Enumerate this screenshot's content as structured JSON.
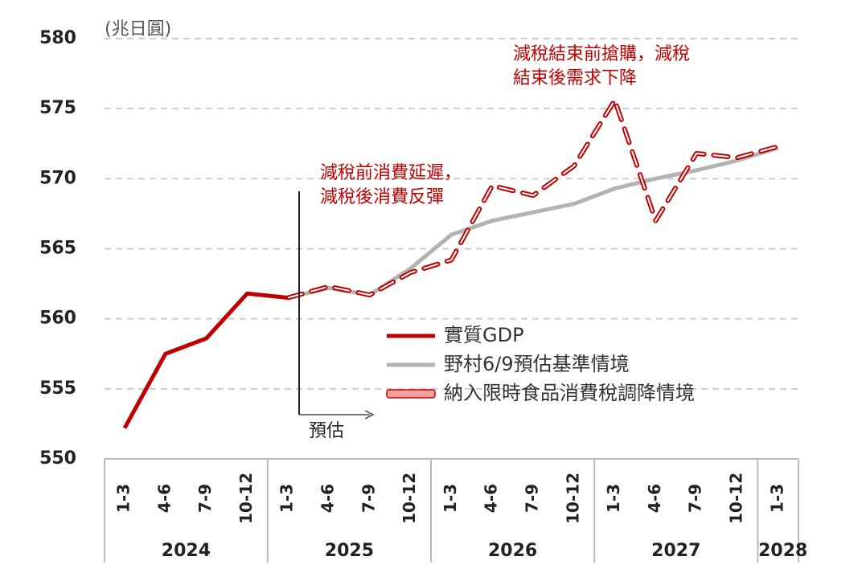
{
  "chart_data": {
    "type": "line",
    "unit_label": "(兆日圓)",
    "categories": [
      "1-3",
      "4-6",
      "7-9",
      "10-12",
      "1-3",
      "4-6",
      "7-9",
      "10-12",
      "1-3",
      "4-6",
      "7-9",
      "10-12",
      "1-3",
      "4-6",
      "7-9",
      "10-12",
      "1-3"
    ],
    "years": [
      "2024",
      "2025",
      "2026",
      "2027",
      "2028"
    ],
    "ylim": [
      550,
      580
    ],
    "yticks": [
      550,
      555,
      560,
      565,
      570,
      575,
      580
    ],
    "grid": true,
    "series": [
      {
        "name": "實質GDP",
        "color": "#c00000",
        "style": "solid",
        "values": [
          552.2,
          557.5,
          558.6,
          561.8,
          561.5,
          null,
          null,
          null,
          null,
          null,
          null,
          null,
          null,
          null,
          null,
          null,
          null
        ]
      },
      {
        "name": "野村6/9預估基準情境",
        "color": "#b3b3b3",
        "style": "solid",
        "values": [
          null,
          null,
          null,
          null,
          561.5,
          562.2,
          561.7,
          563.6,
          566.0,
          567.0,
          567.6,
          568.2,
          569.3,
          570.0,
          570.6,
          571.3,
          572.2
        ]
      },
      {
        "name": "納入限時食品消費稅調降情境",
        "color": "#c00000",
        "style": "dashed",
        "values": [
          null,
          null,
          null,
          null,
          561.5,
          562.3,
          561.7,
          563.3,
          564.2,
          569.5,
          568.8,
          570.9,
          575.6,
          567.0,
          571.8,
          571.5,
          572.3
        ]
      }
    ],
    "annotations": [
      {
        "lines": [
          "減稅結束前搶購，減稅",
          "結束後需求下降"
        ]
      },
      {
        "lines": [
          "減稅前消費延遲，",
          "減稅後消費反彈"
        ]
      },
      {
        "lines": [
          "預估"
        ]
      }
    ]
  }
}
